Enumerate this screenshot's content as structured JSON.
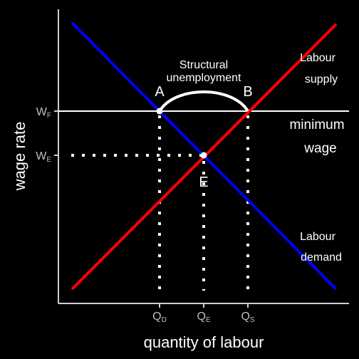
{
  "axes": {
    "y_title": "wage rate",
    "x_title": "quantity of labour",
    "y_ticks": [
      {
        "main": "W",
        "sub": "F"
      },
      {
        "main": "W",
        "sub": "E"
      }
    ],
    "x_ticks": [
      {
        "main": "Q",
        "sub": "D"
      },
      {
        "main": "Q",
        "sub": "E"
      },
      {
        "main": "Q",
        "sub": "S"
      }
    ]
  },
  "curves": {
    "supply_label_line1": "Labour",
    "supply_label_line2": "supply",
    "demand_label_line1": "Labour",
    "demand_label_line2": "demand",
    "supply_color": "#ff0000",
    "demand_color": "#0000ff"
  },
  "minimum_wage": {
    "label_line1": "minimum",
    "label_line2": "wage"
  },
  "points": {
    "a": "A",
    "b": "B",
    "e": "E"
  },
  "structural_unemployment": {
    "line1": "Structural",
    "line2": "unemployment"
  }
}
